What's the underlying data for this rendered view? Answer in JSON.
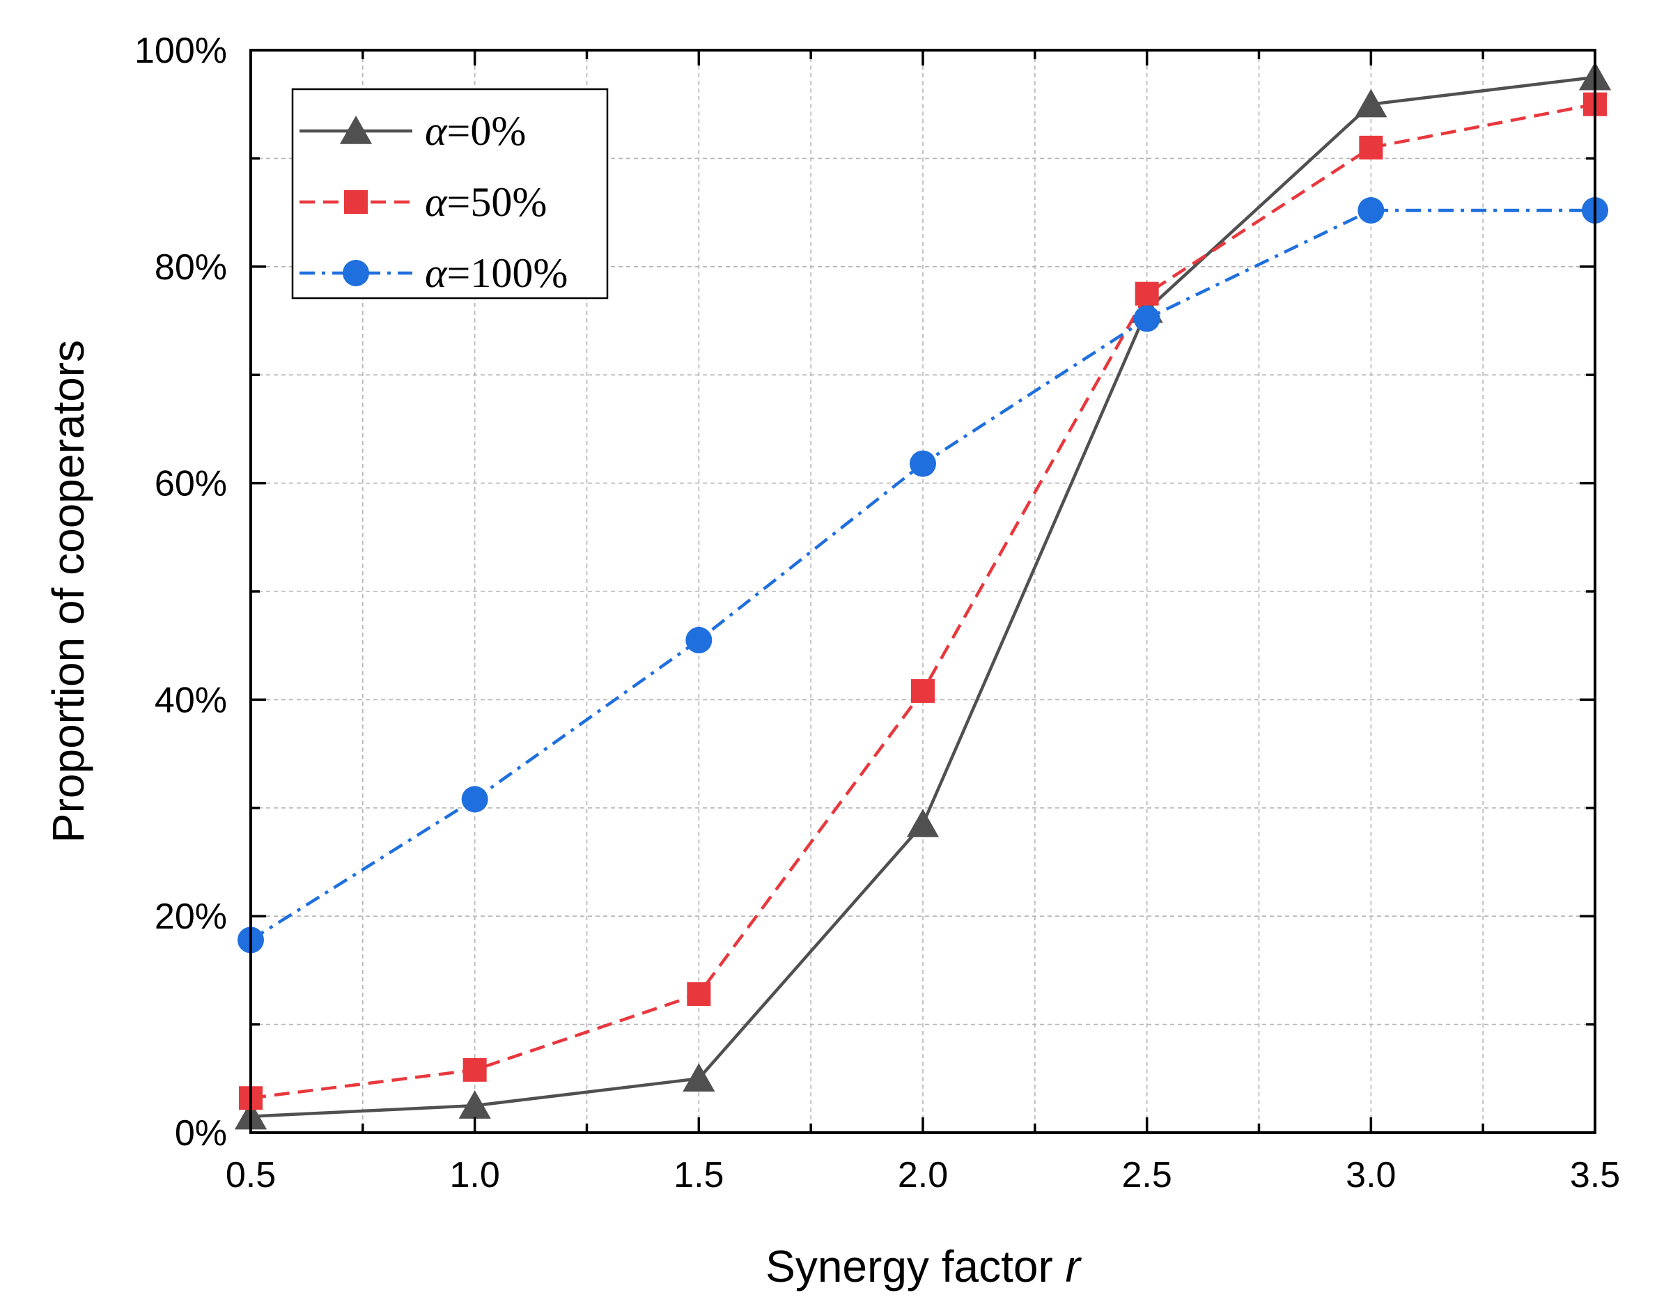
{
  "chart_data": {
    "type": "line",
    "xlabel": "Synergy factor",
    "xlabel_var": "r",
    "ylabel": "Proportion of cooperators",
    "xlim": [
      0.5,
      3.5
    ],
    "ylim": [
      0,
      100
    ],
    "x_ticks": [
      "0.5",
      "1.0",
      "1.5",
      "2.0",
      "2.5",
      "3.0",
      "3.5"
    ],
    "y_ticks": [
      "0%",
      "20%",
      "40%",
      "60%",
      "80%",
      "100%"
    ],
    "grid": true,
    "legend_position": "top-left",
    "x": [
      0.5,
      1.0,
      1.5,
      2.0,
      2.5,
      3.0,
      3.5
    ],
    "series": [
      {
        "name": "α=0%",
        "values": [
          1.5,
          2.5,
          5.0,
          28.5,
          76.0,
          95.0,
          97.5
        ],
        "color": "#505050",
        "marker": "triangle",
        "line_style": "solid"
      },
      {
        "name": "α=50%",
        "values": [
          3.2,
          5.8,
          12.8,
          40.8,
          77.5,
          91.0,
          95.0
        ],
        "color": "#e8383d",
        "marker": "square",
        "line_style": "dashed"
      },
      {
        "name": "α=100%",
        "values": [
          17.8,
          30.8,
          45.5,
          61.8,
          75.2,
          85.2,
          85.2
        ],
        "color": "#1f6fde",
        "marker": "circle",
        "line_style": "dashdot"
      }
    ]
  }
}
